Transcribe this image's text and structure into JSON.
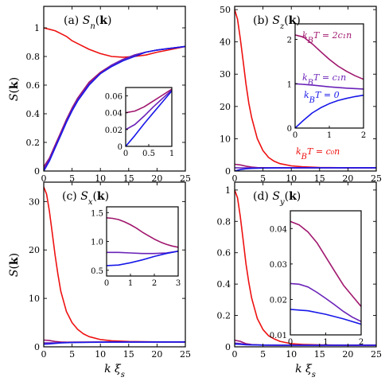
{
  "colors": {
    "red": "#ee1111",
    "magenta": "#a0176e",
    "purple": "#6a22b8",
    "blue": "#1818e8"
  },
  "xlabel": "k ξs",
  "ylabel": "S(k)",
  "chart_data": [
    {
      "id": "a",
      "type": "line",
      "label": "(a) Sₙ(k)",
      "xlim": [
        0,
        25
      ],
      "ylim": [
        0,
        1.15
      ],
      "xticks": [
        0,
        5,
        10,
        15,
        20,
        25
      ],
      "yticks": [
        0,
        0.2,
        0.4,
        0.6,
        0.8,
        1
      ],
      "ytick_labels": [
        "0",
        "0.2",
        "0.4",
        "0.6",
        "0.8",
        "1"
      ],
      "series": [
        {
          "color": "red",
          "x": [
            0,
            1,
            2,
            3,
            4,
            5,
            6,
            8,
            10,
            12,
            14,
            16,
            18,
            20,
            22,
            25
          ],
          "y": [
            1,
            0.99,
            0.98,
            0.96,
            0.94,
            0.91,
            0.89,
            0.85,
            0.82,
            0.8,
            0.795,
            0.8,
            0.81,
            0.83,
            0.845,
            0.87
          ]
        },
        {
          "color": "magenta",
          "x": [
            0,
            1,
            2,
            3,
            4,
            5,
            6,
            8,
            10,
            12,
            14,
            16,
            18,
            20,
            22,
            25
          ],
          "y": [
            0.03,
            0.09,
            0.18,
            0.27,
            0.36,
            0.44,
            0.51,
            0.62,
            0.69,
            0.74,
            0.78,
            0.81,
            0.83,
            0.845,
            0.855,
            0.87
          ]
        },
        {
          "color": "purple",
          "x": [
            0,
            1,
            2,
            3,
            4,
            5,
            6,
            8,
            10,
            12,
            14,
            16,
            18,
            20,
            22,
            25
          ],
          "y": [
            0.015,
            0.08,
            0.17,
            0.26,
            0.35,
            0.43,
            0.5,
            0.61,
            0.68,
            0.74,
            0.78,
            0.81,
            0.83,
            0.845,
            0.855,
            0.87
          ]
        },
        {
          "color": "blue",
          "x": [
            0,
            1,
            2,
            3,
            4,
            5,
            6,
            8,
            10,
            12,
            14,
            16,
            18,
            20,
            22,
            25
          ],
          "y": [
            0,
            0.07,
            0.16,
            0.25,
            0.34,
            0.42,
            0.49,
            0.6,
            0.68,
            0.73,
            0.77,
            0.8,
            0.83,
            0.845,
            0.855,
            0.87
          ]
        }
      ],
      "inset": {
        "xlim": [
          0,
          1
        ],
        "ylim": [
          0,
          0.07
        ],
        "xticks": [
          0,
          0.5,
          1
        ],
        "xtick_labels": [
          "0",
          "0.5",
          "1"
        ],
        "yticks": [
          0,
          0.02,
          0.04,
          0.06
        ],
        "ytick_labels": [
          "0",
          "0.02",
          "0.04",
          "0.06"
        ],
        "series": [
          {
            "color": "magenta",
            "x": [
              0,
              0.2,
              0.4,
              0.6,
              0.8,
              1
            ],
            "y": [
              0.04,
              0.042,
              0.047,
              0.054,
              0.061,
              0.068
            ]
          },
          {
            "color": "purple",
            "x": [
              0,
              0.2,
              0.4,
              0.6,
              0.8,
              1
            ],
            "y": [
              0.02,
              0.026,
              0.036,
              0.047,
              0.057,
              0.067
            ]
          },
          {
            "color": "blue",
            "x": [
              0,
              0.2,
              0.4,
              0.6,
              0.8,
              1
            ],
            "y": [
              0,
              0.013,
              0.027,
              0.04,
              0.053,
              0.066
            ]
          }
        ]
      }
    },
    {
      "id": "b",
      "type": "line",
      "label": "(b) S_z(k)",
      "xlim": [
        0,
        25
      ],
      "ylim": [
        0,
        51
      ],
      "xticks": [
        0,
        5,
        10,
        15,
        20,
        25
      ],
      "yticks": [
        0,
        10,
        20,
        30,
        40,
        50
      ],
      "ytick_labels": [
        "0",
        "10",
        "20",
        "30",
        "40",
        "50"
      ],
      "series": [
        {
          "color": "red",
          "x": [
            0,
            0.5,
            1,
            1.5,
            2,
            2.5,
            3,
            4,
            5,
            6,
            7,
            8,
            10,
            12,
            15,
            20,
            25
          ],
          "y": [
            50,
            47,
            41,
            34,
            27,
            21,
            16.5,
            10,
            6.3,
            4.2,
            3,
            2.3,
            1.6,
            1.3,
            1.1,
            1.02,
            1
          ]
        },
        {
          "color": "magenta",
          "x": [
            0,
            1,
            2,
            3,
            4,
            6,
            10,
            25
          ],
          "y": [
            2.1,
            1.9,
            1.5,
            1.2,
            1.05,
            1,
            1,
            1
          ]
        },
        {
          "color": "purple",
          "x": [
            0,
            1,
            2,
            4,
            6,
            10,
            25
          ],
          "y": [
            1.0,
            0.98,
            0.95,
            0.97,
            0.99,
            1,
            1
          ]
        },
        {
          "color": "blue",
          "x": [
            0,
            1,
            2,
            3,
            5,
            8,
            12,
            25
          ],
          "y": [
            0,
            0.45,
            0.7,
            0.82,
            0.9,
            0.95,
            0.98,
            1
          ]
        }
      ],
      "annotation": "k_BT = c₀n",
      "inset": {
        "xlim": [
          0,
          2
        ],
        "ylim": [
          0,
          2.35
        ],
        "xticks": [
          0,
          1,
          2
        ],
        "xtick_labels": [
          "0",
          "1",
          "2"
        ],
        "yticks": [
          0,
          1,
          2
        ],
        "ytick_labels": [
          "0",
          "1",
          "2"
        ],
        "labels": [
          "k_BT = 2c₁n",
          "k_BT = c₁n",
          "k_BT = 0"
        ],
        "series": [
          {
            "color": "magenta",
            "x": [
              0,
              0.25,
              0.5,
              0.75,
              1,
              1.25,
              1.5,
              1.75,
              2
            ],
            "y": [
              2.1,
              2.05,
              1.9,
              1.72,
              1.55,
              1.4,
              1.28,
              1.18,
              1.1
            ]
          },
          {
            "color": "purple",
            "x": [
              0,
              0.5,
              1,
              1.5,
              2
            ],
            "y": [
              1.0,
              0.97,
              0.93,
              0.9,
              0.88
            ]
          },
          {
            "color": "blue",
            "x": [
              0,
              0.25,
              0.5,
              0.75,
              1,
              1.25,
              1.5,
              1.75,
              2
            ],
            "y": [
              0,
              0.18,
              0.34,
              0.46,
              0.55,
              0.62,
              0.67,
              0.71,
              0.74
            ]
          }
        ]
      }
    },
    {
      "id": "c",
      "type": "line",
      "label": "(c) Sₓ(k)",
      "xlim": [
        0,
        25
      ],
      "ylim": [
        0,
        34
      ],
      "xticks": [
        0,
        5,
        10,
        15,
        20,
        25
      ],
      "yticks": [
        0,
        10,
        20,
        30
      ],
      "ytick_labels": [
        "0",
        "10",
        "20",
        "30"
      ],
      "series": [
        {
          "color": "red",
          "x": [
            0,
            0.5,
            1,
            1.5,
            2,
            2.5,
            3,
            4,
            5,
            6,
            7,
            8,
            10,
            12,
            15,
            20,
            25
          ],
          "y": [
            33,
            31.5,
            28,
            23.5,
            19,
            15,
            11.5,
            7.3,
            5,
            3.6,
            2.7,
            2.1,
            1.5,
            1.25,
            1.1,
            1.02,
            1
          ]
        },
        {
          "color": "magenta",
          "x": [
            0,
            1,
            2,
            3,
            4,
            6,
            10,
            25
          ],
          "y": [
            1.4,
            1.3,
            1.1,
            1.0,
            0.95,
            0.97,
            1,
            1
          ]
        },
        {
          "color": "purple",
          "x": [
            0,
            1,
            2,
            3,
            5,
            10,
            25
          ],
          "y": [
            0.8,
            0.8,
            0.82,
            0.85,
            0.9,
            0.97,
            1
          ]
        },
        {
          "color": "blue",
          "x": [
            0,
            1,
            2,
            3,
            5,
            8,
            12,
            25
          ],
          "y": [
            0.55,
            0.6,
            0.7,
            0.8,
            0.88,
            0.94,
            0.97,
            1
          ]
        }
      ],
      "inset": {
        "xlim": [
          0,
          3
        ],
        "ylim": [
          0.4,
          1.6
        ],
        "xticks": [
          0,
          1,
          2,
          3
        ],
        "xtick_labels": [
          "0",
          "1",
          "2",
          "3"
        ],
        "yticks": [
          0.5,
          1.0,
          1.5
        ],
        "ytick_labels": [
          "0.5",
          "1.0",
          "1.5"
        ],
        "series": [
          {
            "color": "magenta",
            "x": [
              0,
              0.25,
              0.5,
              0.75,
              1,
              1.25,
              1.5,
              1.75,
              2,
              2.25,
              2.5,
              2.75,
              3
            ],
            "y": [
              1.41,
              1.4,
              1.38,
              1.34,
              1.29,
              1.23,
              1.16,
              1.1,
              1.04,
              0.99,
              0.95,
              0.92,
              0.9
            ]
          },
          {
            "color": "purple",
            "x": [
              0,
              0.5,
              1,
              1.5,
              2,
              2.5,
              3
            ],
            "y": [
              0.81,
              0.81,
              0.8,
              0.79,
              0.79,
              0.8,
              0.83
            ]
          },
          {
            "color": "blue",
            "x": [
              0,
              0.5,
              1,
              1.5,
              2,
              2.5,
              3
            ],
            "y": [
              0.58,
              0.59,
              0.63,
              0.68,
              0.74,
              0.79,
              0.83
            ]
          }
        ]
      }
    },
    {
      "id": "d",
      "type": "line",
      "label": "(d) S_y(k)",
      "xlim": [
        0,
        25
      ],
      "ylim": [
        0,
        1.05
      ],
      "xticks": [
        0,
        5,
        10,
        15,
        20,
        25
      ],
      "yticks": [
        0,
        0.2,
        0.4,
        0.6,
        0.8,
        1
      ],
      "ytick_labels": [
        "0",
        "0.2",
        "0.4",
        "0.6",
        "0.8",
        "1"
      ],
      "series": [
        {
          "color": "red",
          "x": [
            0,
            0.5,
            1,
            1.5,
            2,
            2.5,
            3,
            4,
            5,
            6,
            7,
            8,
            10,
            12,
            15,
            20,
            25
          ],
          "y": [
            1,
            0.95,
            0.83,
            0.68,
            0.53,
            0.41,
            0.31,
            0.18,
            0.11,
            0.07,
            0.05,
            0.035,
            0.02,
            0.015,
            0.012,
            0.01,
            0.01
          ]
        },
        {
          "color": "magenta",
          "x": [
            0,
            1,
            2,
            3,
            5,
            8,
            25
          ],
          "y": [
            0.042,
            0.035,
            0.02,
            0.014,
            0.011,
            0.01,
            0.01
          ]
        },
        {
          "color": "purple",
          "x": [
            0,
            1,
            2,
            3,
            5,
            8,
            25
          ],
          "y": [
            0.024,
            0.021,
            0.015,
            0.012,
            0.011,
            0.01,
            0.01
          ]
        },
        {
          "color": "blue",
          "x": [
            0,
            1,
            2,
            3,
            5,
            8,
            25
          ],
          "y": [
            0.017,
            0.016,
            0.013,
            0.012,
            0.011,
            0.01,
            0.01
          ]
        }
      ],
      "inset": {
        "xlim": [
          0,
          2
        ],
        "ylim": [
          0.01,
          0.045
        ],
        "xticks": [
          0,
          1,
          2
        ],
        "xtick_labels": [
          "0",
          "1",
          "2"
        ],
        "yticks": [
          0.01,
          0.02,
          0.03,
          0.04
        ],
        "ytick_labels": [
          "0.01",
          "0.02",
          "0.03",
          "0.04"
        ],
        "series": [
          {
            "color": "magenta",
            "x": [
              0,
              0.25,
              0.5,
              0.75,
              1,
              1.25,
              1.5,
              1.75,
              2
            ],
            "y": [
              0.042,
              0.041,
              0.039,
              0.036,
              0.032,
              0.028,
              0.024,
              0.021,
              0.018
            ]
          },
          {
            "color": "purple",
            "x": [
              0,
              0.25,
              0.5,
              0.75,
              1,
              1.25,
              1.5,
              1.75,
              2
            ],
            "y": [
              0.0245,
              0.0243,
              0.0235,
              0.022,
              0.0203,
              0.0185,
              0.0166,
              0.015,
              0.0138
            ]
          },
          {
            "color": "blue",
            "x": [
              0,
              0.5,
              1,
              1.5,
              2
            ],
            "y": [
              0.0172,
              0.0168,
              0.0158,
              0.0145,
              0.013
            ]
          }
        ]
      }
    }
  ]
}
